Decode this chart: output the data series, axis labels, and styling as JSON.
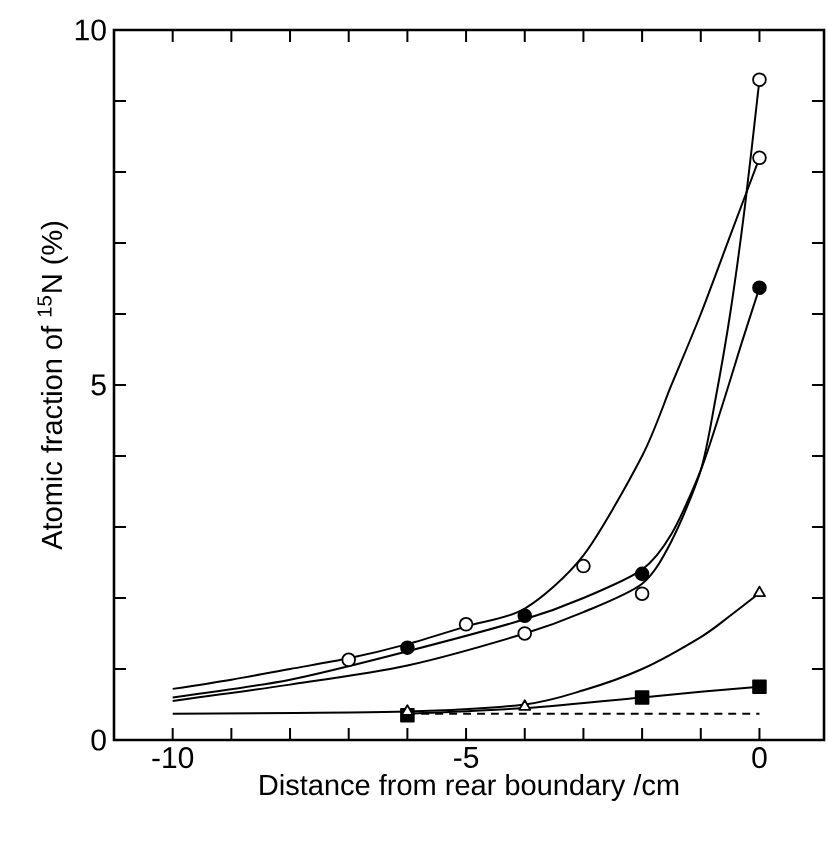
{
  "chart_data": {
    "type": "line",
    "xlabel": "Distance from rear boundary /cm",
    "ylabel": "Atomic fraction of $^{15}$N (%)",
    "xlim": [
      -11,
      1.1
    ],
    "ylim": [
      0,
      10
    ],
    "xticks": [
      -10,
      {
        "value": -9,
        "label": null
      },
      {
        "value": -8,
        "label": null
      },
      {
        "value": -7,
        "label": null
      },
      {
        "value": -6,
        "label": null
      },
      -5,
      {
        "value": -4,
        "label": null
      },
      {
        "value": -3,
        "label": null
      },
      {
        "value": -2,
        "label": null
      },
      {
        "value": -1,
        "label": null
      },
      0
    ],
    "yticks": [
      0,
      {
        "value": 1,
        "label": null
      },
      {
        "value": 2,
        "label": null
      },
      {
        "value": 3,
        "label": null
      },
      {
        "value": 4,
        "label": null
      },
      5,
      {
        "value": 6,
        "label": null
      },
      {
        "value": 7,
        "label": null
      },
      {
        "value": 8,
        "label": null
      },
      {
        "value": 9,
        "label": null
      },
      10
    ],
    "series": [
      {
        "marker": "none",
        "color": "#000000",
        "x": [
          -10,
          -9,
          -8,
          -7,
          -6,
          -5,
          -4,
          -3,
          -2,
          -1.5,
          -1,
          -0.5,
          0
        ],
        "values": [
          0.72,
          0.85,
          1.0,
          1.15,
          1.35,
          1.6,
          1.85,
          2.6,
          4.0,
          5.0,
          6.0,
          7.1,
          8.2
        ]
      },
      {
        "marker": "none",
        "color": "#000000",
        "x": [
          -10,
          -8,
          -6,
          -4,
          -3,
          -2,
          -1.5,
          -1,
          -0.75,
          -0.5,
          -0.25,
          0
        ],
        "values": [
          0.55,
          0.78,
          1.05,
          1.5,
          1.8,
          2.2,
          2.8,
          3.8,
          4.8,
          6.0,
          7.5,
          9.3
        ]
      },
      {
        "marker": "none",
        "color": "#000000",
        "x": [
          -10,
          -8,
          -6,
          -4,
          -3,
          -2,
          -1.5,
          -1,
          -0.6,
          -0.3,
          0
        ],
        "values": [
          0.6,
          0.85,
          1.25,
          1.7,
          2.0,
          2.4,
          2.9,
          3.8,
          4.8,
          5.6,
          6.37
        ]
      },
      {
        "marker": "none",
        "color": "#000000",
        "x": [
          -10,
          -6,
          -4,
          -3,
          -2,
          -1,
          -0.5,
          0
        ],
        "values": [
          0.37,
          0.4,
          0.5,
          0.7,
          1.0,
          1.45,
          1.75,
          2.07
        ]
      },
      {
        "marker": "none",
        "color": "#000000",
        "x": [
          -6,
          -4,
          -2,
          -1,
          0
        ],
        "values": [
          0.37,
          0.45,
          0.6,
          0.68,
          0.75
        ]
      },
      {
        "marker": "none",
        "line_style": "dashed",
        "color": "#000000",
        "x": [
          -6,
          0
        ],
        "values": [
          0.37,
          0.37
        ]
      },
      {
        "type": "scatter",
        "marker": "circle",
        "color": "#ffffff",
        "x": [
          -7,
          -5,
          -3,
          0
        ],
        "values": [
          1.13,
          1.63,
          2.45,
          8.2
        ]
      },
      {
        "type": "scatter",
        "marker": "circle",
        "color": "#ffffff",
        "x": [
          -4,
          -2,
          0
        ],
        "values": [
          1.5,
          2.06,
          9.3
        ]
      },
      {
        "type": "scatter",
        "marker": "circle",
        "color": "#000000",
        "x": [
          -6,
          -4,
          -2,
          0
        ],
        "values": [
          1.3,
          1.75,
          2.34,
          6.37
        ]
      },
      {
        "type": "scatter",
        "marker": "square",
        "color": "#000000",
        "x": [
          -6,
          -2,
          0
        ],
        "values": [
          0.35,
          0.6,
          0.75
        ]
      },
      {
        "type": "scatter",
        "marker": "triangle",
        "color": "#ffffff",
        "x": [
          -6,
          -4,
          0
        ],
        "values": [
          0.4,
          0.47,
          2.07
        ]
      }
    ]
  }
}
